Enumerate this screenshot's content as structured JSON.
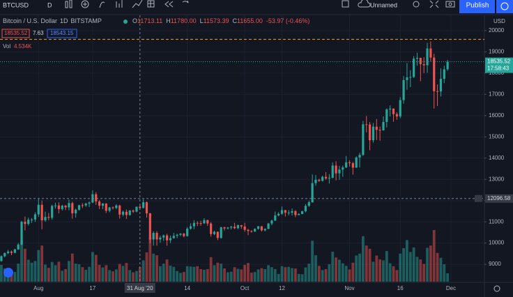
{
  "toolbar": {
    "symbol": "BTCUSD",
    "interval": "D",
    "layout": "Unnamed",
    "publish": "Publish"
  },
  "legend": {
    "title": "Bitcoin / U.S. Dollar",
    "interval": "1D",
    "exchange": "BITSTAMP",
    "ohlc": [
      {
        "key": "O",
        "value": "11713.11"
      },
      {
        "key": "H",
        "value": "11780.00"
      },
      {
        "key": "L",
        "value": "11573.39"
      },
      {
        "key": "C",
        "value": "11655.00"
      }
    ],
    "change": "-53.97 (-0.46%)",
    "bid": "18535.52",
    "spread": "7.63",
    "ask": "18543.15",
    "vol_label": "Vol",
    "vol_value": "4.534K"
  },
  "chart_data": {
    "type": "candlestick",
    "currency": "USD",
    "up_color": "#26a69a",
    "down_color": "#ef5350",
    "grid": true,
    "open": [
      9160,
      9380,
      9530,
      9600,
      9540,
      9700,
      9930,
      11000,
      10900,
      11100,
      11110,
      11350,
      11800,
      11070,
      11230,
      11190,
      11750,
      11770,
      11600,
      11760,
      11680,
      11880,
      11400,
      11570,
      11780,
      11770,
      11860,
      11910,
      12300,
      11960,
      11760,
      11860,
      11520,
      11680,
      11650,
      11770,
      11340,
      11470,
      11320,
      11530,
      11480,
      11713.11,
      11655,
      11920,
      11400,
      10170,
      10480,
      10170,
      10260,
      10360,
      10130,
      10230,
      10340,
      10390,
      10440,
      10330,
      10680,
      10790,
      10950,
      10940,
      10930,
      11080,
      10920,
      10420,
      10530,
      10240,
      10740,
      10690,
      10730,
      10770,
      10700,
      10840,
      10780,
      10620,
      10570,
      10550,
      10670,
      10790,
      10600,
      10670,
      10920,
      11060,
      11300,
      11380,
      11550,
      11430,
      11430,
      11500,
      11320,
      11370,
      11500,
      11750,
      11920,
      12820,
      12980,
      12930,
      13120,
      13040,
      13070,
      13650,
      13280,
      13460,
      13560,
      13800,
      13760,
      13550,
      14030,
      14150,
      15590,
      15580,
      14840,
      15480,
      15330,
      15310,
      15700,
      16290,
      16330,
      16070,
      15960,
      16730,
      17670,
      17800,
      17820,
      18680,
      18720,
      18420,
      18370,
      19160,
      18730,
      17150,
      17140,
      17730,
      18180
    ],
    "high": [
      9420,
      9560,
      9680,
      9650,
      9730,
      10000,
      11050,
      11250,
      11200,
      11180,
      11450,
      12100,
      12000,
      11480,
      11420,
      11800,
      11900,
      11920,
      11800,
      11800,
      12050,
      11950,
      11620,
      11800,
      11880,
      11900,
      11960,
      12480,
      12400,
      12020,
      11880,
      11880,
      11700,
      11720,
      11830,
      11800,
      11530,
      11580,
      11560,
      11580,
      11720,
      11780,
      12060,
      11950,
      11420,
      10560,
      10560,
      10350,
      10400,
      10440,
      10350,
      10480,
      10440,
      10470,
      10480,
      10750,
      10930,
      11080,
      11030,
      11050,
      11170,
      11100,
      10990,
      10580,
      10550,
      10770,
      10770,
      10750,
      10810,
      10950,
      10870,
      10850,
      10950,
      10670,
      10600,
      10690,
      10800,
      10800,
      10690,
      10950,
      11100,
      11480,
      11450,
      11720,
      11560,
      11550,
      11630,
      11550,
      11400,
      11520,
      11830,
      12000,
      13230,
      13200,
      13030,
      13170,
      13340,
      13250,
      13800,
      13850,
      13630,
      13650,
      14100,
      13900,
      13820,
      14080,
      14250,
      15750,
      15980,
      15700,
      15650,
      15840,
      15480,
      15960,
      16340,
      16480,
      16340,
      16160,
      16870,
      17860,
      18480,
      18140,
      18800,
      18960,
      18720,
      18750,
      19420,
      19490,
      18910,
      17470,
      18230,
      18350,
      18620
    ],
    "low": [
      9120,
      9330,
      9480,
      9430,
      9520,
      9680,
      9900,
      10600,
      10830,
      10950,
      11000,
      11230,
      10650,
      11000,
      11080,
      11100,
      11620,
      11400,
      11530,
      11550,
      11540,
      11150,
      11200,
      11530,
      11650,
      11700,
      11700,
      11880,
      11800,
      11600,
      11600,
      11420,
      11450,
      11580,
      11600,
      11150,
      11260,
      11140,
      11290,
      11420,
      11450,
      11573.39,
      11630,
      11200,
      10000,
      9880,
      9880,
      10020,
      10100,
      9870,
      10000,
      10210,
      10230,
      10330,
      10270,
      10300,
      10630,
      10650,
      10800,
      10810,
      10900,
      10810,
      10300,
      10370,
      10140,
      10210,
      10590,
      10640,
      10640,
      10650,
      10650,
      10670,
      10530,
      10370,
      10490,
      10520,
      10630,
      10540,
      10550,
      10650,
      10840,
      11040,
      11260,
      11330,
      11250,
      11300,
      11300,
      11220,
      11310,
      11360,
      11450,
      11700,
      11900,
      12700,
      12880,
      12900,
      12980,
      12800,
      13050,
      12950,
      12980,
      13120,
      13530,
      13600,
      13220,
      13540,
      13560,
      14100,
      15210,
      14370,
      14730,
      14850,
      14820,
      15290,
      15440,
      15960,
      15710,
      15800,
      15870,
      16560,
      17220,
      17340,
      17770,
      18350,
      17620,
      18000,
      18020,
      18560,
      16330,
      16450,
      16900,
      17530,
      18110
    ],
    "close": [
      9380,
      9530,
      9600,
      9540,
      9700,
      9930,
      11000,
      10900,
      11100,
      11110,
      11350,
      11800,
      11070,
      11230,
      11190,
      11750,
      11770,
      11600,
      11760,
      11680,
      11880,
      11400,
      11570,
      11780,
      11770,
      11860,
      11910,
      12300,
      11960,
      11760,
      11860,
      11520,
      11680,
      11650,
      11770,
      11340,
      11470,
      11320,
      11530,
      11480,
      11710,
      11655,
      11920,
      11400,
      10170,
      10480,
      10170,
      10260,
      10360,
      10130,
      10230,
      10340,
      10390,
      10440,
      10330,
      10680,
      10790,
      10950,
      10940,
      10930,
      11080,
      10920,
      10420,
      10530,
      10240,
      10740,
      10690,
      10730,
      10770,
      10700,
      10840,
      10780,
      10620,
      10570,
      10550,
      10670,
      10790,
      10600,
      10670,
      10920,
      11060,
      11300,
      11380,
      11550,
      11430,
      11430,
      11500,
      11320,
      11370,
      11500,
      11750,
      11920,
      12820,
      12980,
      12930,
      13120,
      13040,
      13070,
      13650,
      13280,
      13460,
      13560,
      13800,
      13760,
      13550,
      14030,
      14150,
      15590,
      15580,
      14840,
      15480,
      15330,
      15310,
      15700,
      16290,
      16330,
      16070,
      15960,
      16730,
      17670,
      17800,
      17820,
      18680,
      18720,
      18420,
      18370,
      19160,
      18730,
      17150,
      17140,
      17730,
      18180,
      18535.52
    ],
    "volume": [
      5200,
      4100,
      3900,
      3300,
      3000,
      5600,
      12800,
      10200,
      6800,
      5900,
      6400,
      9800,
      11200,
      5300,
      4300,
      6100,
      5100,
      6200,
      3400,
      3900,
      6400,
      8700,
      5600,
      5400,
      4500,
      3700,
      4600,
      9200,
      8300,
      5200,
      4400,
      5100,
      3600,
      3200,
      3800,
      5500,
      4900,
      5800,
      3600,
      2900,
      3300,
      4534,
      6600,
      9100,
      13800,
      8700,
      8200,
      4800,
      5600,
      6900,
      5000,
      4600,
      3300,
      2700,
      3000,
      4800,
      4700,
      4600,
      4800,
      3900,
      3700,
      3900,
      7600,
      5100,
      5900,
      5600,
      4100,
      2900,
      3100,
      4500,
      4000,
      3800,
      5200,
      5800,
      2800,
      3000,
      3800,
      4200,
      3900,
      5100,
      4500,
      3900,
      2400,
      4800,
      4500,
      4600,
      4200,
      4100,
      2400,
      2300,
      4400,
      5600,
      12700,
      8200,
      4900,
      3600,
      3900,
      5400,
      9300,
      7500,
      6800,
      5700,
      4900,
      3800,
      5900,
      8100,
      8700,
      14100,
      11200,
      10200,
      6200,
      8100,
      6900,
      6600,
      9500,
      5700,
      4800,
      3600,
      8700,
      10400,
      12900,
      9200,
      10600,
      7700,
      6900,
      5500,
      10500,
      11200,
      16000,
      8900,
      7400,
      5400,
      2600
    ],
    "ylim": [
      8150,
      20720
    ],
    "yticks": [
      9000,
      10000,
      11000,
      12000,
      13000,
      14000,
      15000,
      16000,
      17000,
      18000,
      19000,
      20000
    ],
    "xlim": [
      -0.4,
      142.9
    ],
    "xticks": [
      {
        "value": 11,
        "label": "Aug"
      },
      {
        "value": 27,
        "label": "17"
      },
      {
        "value": 55,
        "label": "14"
      },
      {
        "value": 72,
        "label": "Oct"
      },
      {
        "value": 83,
        "label": "12"
      },
      {
        "value": 103,
        "label": "Nov"
      },
      {
        "value": 118,
        "label": "16"
      },
      {
        "value": 133,
        "label": "Dec"
      }
    ],
    "crosshair": {
      "x": {
        "value": 41,
        "label": "31 Aug '20"
      },
      "y": 12096.58
    },
    "countdown": "17:58:43",
    "hline": 19590
  }
}
